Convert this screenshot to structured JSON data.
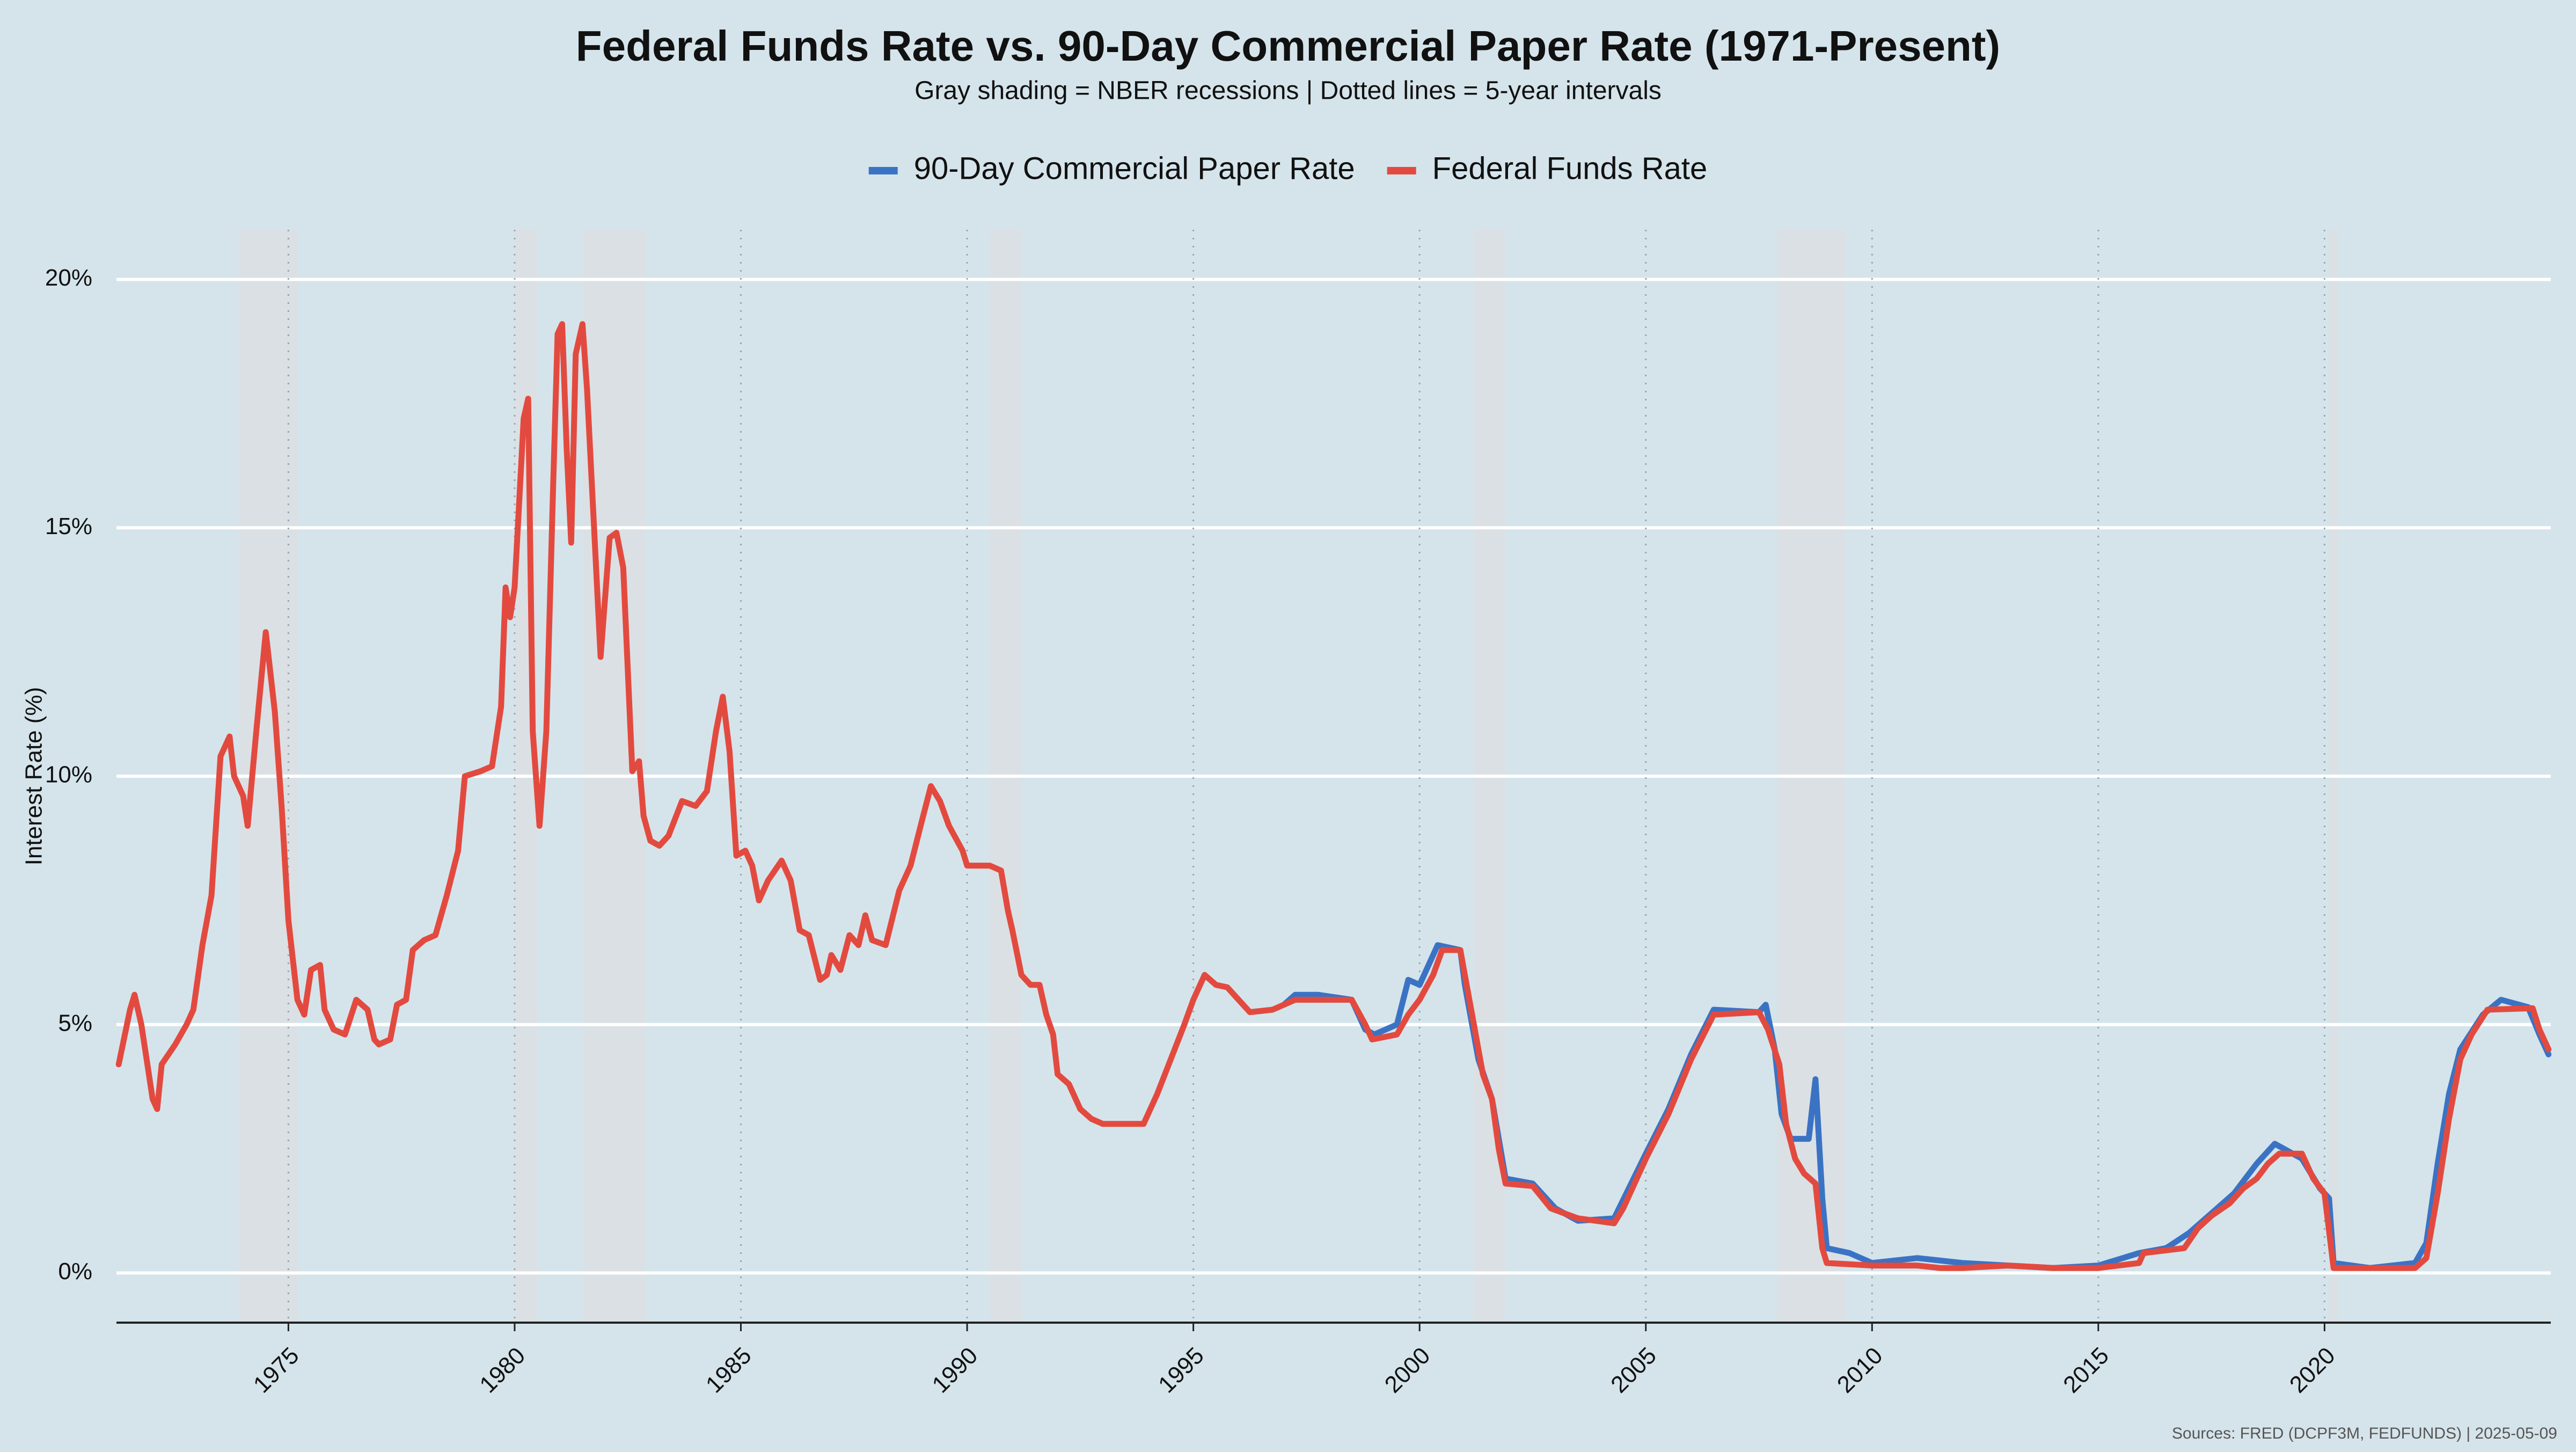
{
  "chart_data": {
    "type": "line",
    "title": "Federal Funds Rate vs. 90-Day Commercial Paper Rate (1971-Present)",
    "subtitle": "Gray shading = NBER recessions | Dotted lines = 5-year intervals",
    "y_label": "Interest Rate (%)",
    "source": "Sources: FRED (DCPF3M, FEDFUNDS) | 2025-05-09",
    "legend": "top",
    "grid": true,
    "xlim": [
      1971.2,
      2025.0
    ],
    "xticks": [
      1975,
      1980,
      1985,
      1990,
      1995,
      2000,
      2005,
      2010,
      2015,
      2020
    ],
    "ylim": [
      -1,
      21
    ],
    "yticks": [
      {
        "value": 0,
        "label": "0%"
      },
      {
        "value": 5,
        "label": "5%"
      },
      {
        "value": 10,
        "label": "10%"
      },
      {
        "value": 15,
        "label": "15%"
      },
      {
        "value": 20,
        "label": "20%"
      }
    ],
    "recessions": [
      [
        1973.9,
        1975.2
      ],
      [
        1980.0,
        1980.5
      ],
      [
        1981.5,
        1982.9
      ],
      [
        1990.5,
        1991.2
      ],
      [
        2001.2,
        2001.9
      ],
      [
        2007.9,
        2009.4
      ],
      [
        2020.1,
        2020.3
      ]
    ],
    "series": [
      {
        "name": "90-Day Commercial Paper Rate",
        "color": "#3b73c4",
        "x": [
          1997.0,
          1997.25,
          1997.75,
          1998.5,
          1998.8,
          1999.0,
          1999.5,
          1999.75,
          2000.0,
          2000.4,
          2000.9,
          2001.0,
          2001.3,
          2001.6,
          2001.9,
          2002.5,
          2003.0,
          2003.5,
          2004.3,
          2005.0,
          2005.5,
          2006.0,
          2006.5,
          2007.5,
          2007.65,
          2007.85,
          2008.0,
          2008.2,
          2008.6,
          2008.75,
          2008.9,
          2009.0,
          2009.5,
          2010.0,
          2011.0,
          2012.0,
          2013.0,
          2014.0,
          2015.0,
          2015.9,
          2016.5,
          2017.0,
          2017.5,
          2018.0,
          2018.5,
          2018.9,
          2019.5,
          2019.9,
          2020.1,
          2020.2,
          2021.0,
          2022.0,
          2022.25,
          2022.5,
          2022.75,
          2023.0,
          2023.5,
          2023.9,
          2024.5,
          2024.75,
          2024.95
        ],
        "values": [
          5.4,
          5.6,
          5.6,
          5.5,
          4.9,
          4.8,
          5.0,
          5.9,
          5.8,
          6.6,
          6.5,
          5.8,
          4.3,
          3.5,
          1.9,
          1.8,
          1.3,
          1.05,
          1.1,
          2.4,
          3.3,
          4.4,
          5.3,
          5.25,
          5.4,
          4.5,
          3.2,
          2.7,
          2.7,
          3.9,
          1.5,
          0.5,
          0.4,
          0.2,
          0.3,
          0.2,
          0.15,
          0.1,
          0.15,
          0.4,
          0.5,
          0.8,
          1.2,
          1.6,
          2.2,
          2.6,
          2.3,
          1.7,
          1.5,
          0.2,
          0.1,
          0.2,
          0.6,
          2.2,
          3.6,
          4.5,
          5.2,
          5.5,
          5.35,
          4.8,
          4.4
        ]
      },
      {
        "name": "Federal Funds Rate",
        "color": "#e34a3f",
        "x": [
          1971.25,
          1971.5,
          1971.6,
          1971.75,
          1971.9,
          1972.0,
          1972.1,
          1972.2,
          1972.5,
          1972.75,
          1972.9,
          1973.1,
          1973.3,
          1973.5,
          1973.7,
          1973.8,
          1974.0,
          1974.1,
          1974.3,
          1974.5,
          1974.7,
          1974.85,
          1975.0,
          1975.2,
          1975.35,
          1975.5,
          1975.7,
          1975.8,
          1976.0,
          1976.25,
          1976.5,
          1976.75,
          1976.9,
          1977.0,
          1977.25,
          1977.4,
          1977.6,
          1977.75,
          1978.0,
          1978.25,
          1978.5,
          1978.75,
          1978.9,
          1979.25,
          1979.5,
          1979.7,
          1979.8,
          1979.9,
          1980.0,
          1980.2,
          1980.3,
          1980.4,
          1980.55,
          1980.7,
          1980.85,
          1980.95,
          1981.05,
          1981.15,
          1981.25,
          1981.35,
          1981.5,
          1981.6,
          1981.75,
          1981.9,
          1982.1,
          1982.25,
          1982.4,
          1982.6,
          1982.75,
          1982.85,
          1983.0,
          1983.2,
          1983.4,
          1983.7,
          1984.0,
          1984.25,
          1984.45,
          1984.6,
          1984.75,
          1984.9,
          1985.1,
          1985.25,
          1985.4,
          1985.6,
          1985.9,
          1986.1,
          1986.3,
          1986.5,
          1986.75,
          1986.9,
          1987.0,
          1987.2,
          1987.4,
          1987.6,
          1987.75,
          1987.9,
          1988.2,
          1988.5,
          1988.75,
          1989.0,
          1989.2,
          1989.4,
          1989.6,
          1989.9,
          1990.0,
          1990.5,
          1990.75,
          1990.9,
          1991.0,
          1991.2,
          1991.4,
          1991.6,
          1991.75,
          1991.9,
          1992.0,
          1992.25,
          1992.5,
          1992.75,
          1993.0,
          1993.5,
          1993.9,
          1994.2,
          1994.5,
          1994.8,
          1995.0,
          1995.25,
          1995.5,
          1995.75,
          1996.0,
          1996.25,
          1996.75,
          1997.25,
          1997.75,
          1998.5,
          1998.8,
          1998.95,
          1999.5,
          1999.75,
          2000.0,
          2000.3,
          2000.5,
          2000.9,
          2001.0,
          2001.2,
          2001.4,
          2001.6,
          2001.75,
          2001.9,
          2002.5,
          2002.9,
          2003.5,
          2004.3,
          2004.5,
          2005.0,
          2005.5,
          2006.0,
          2006.5,
          2007.5,
          2007.7,
          2007.95,
          2008.1,
          2008.3,
          2008.5,
          2008.75,
          2008.9,
          2009.0,
          2010.0,
          2011.0,
          2011.5,
          2012.0,
          2013.0,
          2014.0,
          2015.0,
          2015.9,
          2016.0,
          2016.9,
          2017.2,
          2017.5,
          2017.9,
          2018.2,
          2018.5,
          2018.75,
          2019.0,
          2019.5,
          2019.75,
          2020.0,
          2020.2,
          2021.0,
          2022.0,
          2022.25,
          2022.5,
          2022.75,
          2023.0,
          2023.25,
          2023.6,
          2024.6,
          2024.75,
          2024.95
        ],
        "values": [
          4.2,
          5.3,
          5.6,
          5.0,
          4.1,
          3.5,
          3.3,
          4.2,
          4.6,
          5.0,
          5.3,
          6.6,
          7.6,
          10.4,
          10.8,
          10.0,
          9.6,
          9.0,
          11.0,
          12.9,
          11.3,
          9.4,
          7.1,
          5.5,
          5.2,
          6.1,
          6.2,
          5.3,
          4.9,
          4.8,
          5.5,
          5.3,
          4.7,
          4.6,
          4.7,
          5.4,
          5.5,
          6.5,
          6.7,
          6.8,
          7.6,
          8.5,
          10.0,
          10.1,
          10.2,
          11.4,
          13.8,
          13.2,
          13.8,
          17.2,
          17.6,
          10.9,
          9.0,
          10.9,
          15.8,
          18.9,
          19.1,
          16.6,
          14.7,
          18.5,
          19.1,
          17.8,
          15.1,
          12.4,
          14.8,
          14.9,
          14.2,
          10.1,
          10.3,
          9.2,
          8.7,
          8.6,
          8.8,
          9.5,
          9.4,
          9.7,
          10.9,
          11.6,
          10.5,
          8.4,
          8.5,
          8.2,
          7.5,
          7.9,
          8.3,
          7.9,
          6.9,
          6.8,
          5.9,
          6.0,
          6.4,
          6.1,
          6.8,
          6.6,
          7.2,
          6.7,
          6.6,
          7.7,
          8.2,
          9.1,
          9.8,
          9.5,
          9.0,
          8.5,
          8.2,
          8.2,
          8.1,
          7.3,
          6.9,
          6.0,
          5.8,
          5.8,
          5.2,
          4.8,
          4.0,
          3.8,
          3.3,
          3.1,
          3.0,
          3.0,
          3.0,
          3.6,
          4.3,
          5.0,
          5.5,
          6.0,
          5.8,
          5.75,
          5.5,
          5.25,
          5.3,
          5.5,
          5.5,
          5.5,
          5.0,
          4.7,
          4.8,
          5.2,
          5.5,
          6.0,
          6.5,
          6.5,
          6.0,
          5.0,
          4.0,
          3.5,
          2.5,
          1.8,
          1.75,
          1.3,
          1.1,
          1.0,
          1.3,
          2.3,
          3.2,
          4.3,
          5.2,
          5.25,
          4.9,
          4.2,
          3.0,
          2.3,
          2.0,
          1.8,
          0.5,
          0.2,
          0.15,
          0.15,
          0.1,
          0.1,
          0.15,
          0.1,
          0.1,
          0.2,
          0.4,
          0.5,
          0.9,
          1.15,
          1.4,
          1.7,
          1.9,
          2.2,
          2.4,
          2.4,
          1.9,
          1.6,
          0.1,
          0.1,
          0.1,
          0.3,
          1.6,
          3.1,
          4.3,
          4.8,
          5.3,
          5.33,
          4.9,
          4.5
        ]
      }
    ]
  }
}
